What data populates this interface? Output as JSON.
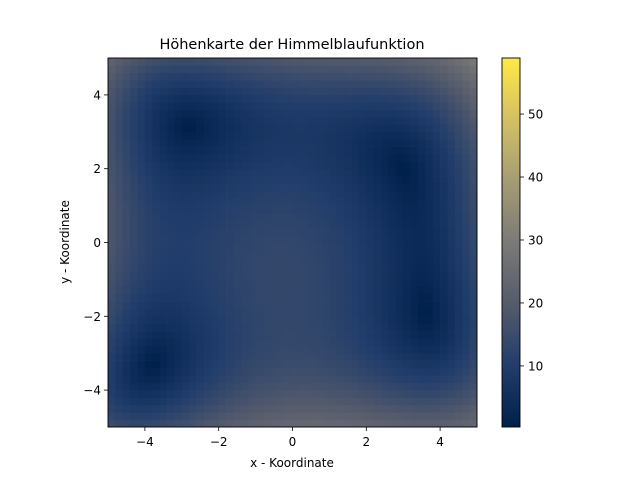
{
  "chart_data": {
    "type": "heatmap",
    "title": "Höhenkarte der Himmelblaufunktion",
    "xlabel": "x - Koordinate",
    "ylabel": "y - Koordinate",
    "xlim": [
      -5,
      5
    ],
    "ylim": [
      -5,
      5
    ],
    "x_ticks": [
      -4,
      -2,
      0,
      2,
      4
    ],
    "y_ticks": [
      -4,
      -2,
      0,
      2,
      4
    ],
    "x_tick_labels": [
      "−4",
      "−2",
      "0",
      "2",
      "4"
    ],
    "y_tick_labels": [
      "−4",
      "−2",
      "0",
      "2",
      "4"
    ],
    "function": "sqrt((x^2 + y - 11)^2 + (x + y^2 - 7)^2)",
    "grid_resolution": 50,
    "colormap": "cividis",
    "colormap_stops": [
      "#00204c",
      "#213d6b",
      "#555b6c",
      "#7b7a77",
      "#a59c74",
      "#d3c064",
      "#ffe945"
    ],
    "color_range": [
      0.3,
      58.9
    ],
    "minima": [
      [
        3.0,
        2.0
      ],
      [
        -2.805,
        3.131
      ],
      [
        -3.779,
        -3.283
      ],
      [
        3.584,
        -1.848
      ]
    ],
    "colorbar": {
      "ticks": [
        10,
        20,
        30,
        40,
        50
      ],
      "tick_labels": [
        "10",
        "20",
        "30",
        "40",
        "50"
      ]
    },
    "grid": false,
    "legend": "none"
  }
}
